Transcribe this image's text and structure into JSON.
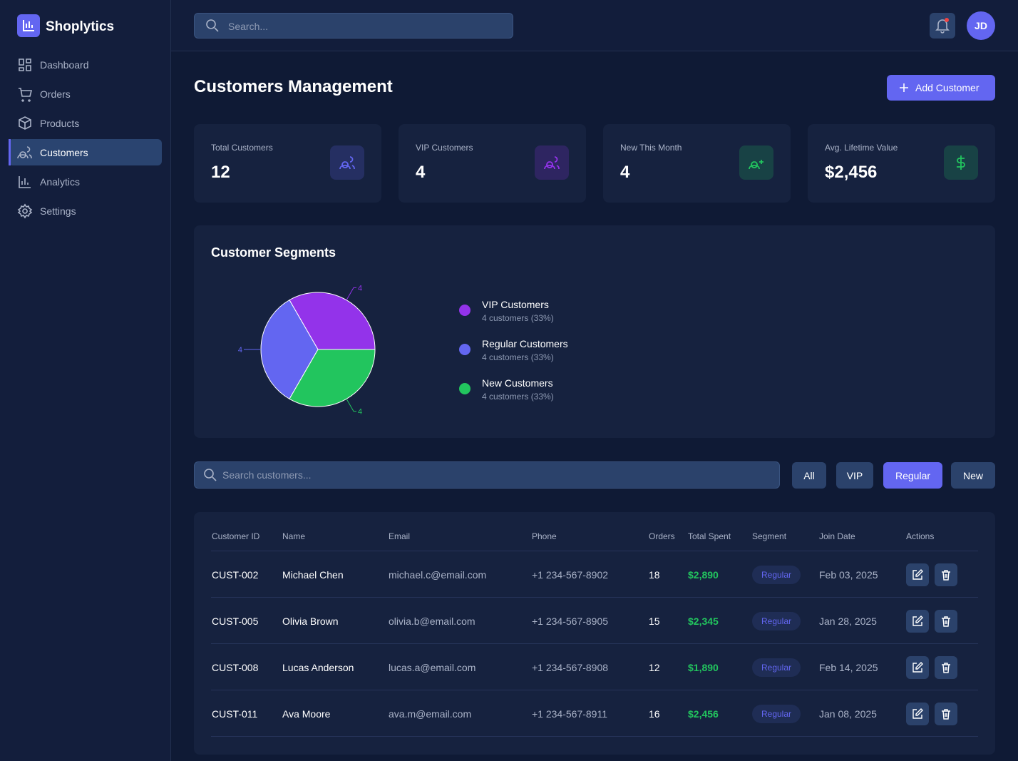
{
  "sidebar": {
    "brand": "Shoplytics",
    "nav": [
      "Dashboard",
      "Orders",
      "Products",
      "Customers",
      "Analytics",
      "Settings"
    ],
    "active": 3
  },
  "topbar": {
    "search_placeholder": "Search...",
    "avatar": "JD"
  },
  "header": {
    "title": "Customers Management",
    "add_button": "Add Customer"
  },
  "stats": [
    {
      "label": "Total Customers",
      "value": 12,
      "color": "#6366f1"
    },
    {
      "label": "VIP Customers",
      "value": 4,
      "color": "#9333ea"
    },
    {
      "label": "New This Month",
      "value": 4,
      "color": "#22c55e"
    },
    {
      "label": "Avg. Lifetime Value",
      "value": "$2,456",
      "color": "#22c55e"
    }
  ],
  "chart_data": {
    "type": "pie",
    "title": "Customer Segments",
    "categories": [
      "VIP Customers",
      "Regular Customers",
      "New Customers"
    ],
    "values": [
      4,
      4,
      4
    ],
    "colors": [
      "#9333ea",
      "#6366f1",
      "#22c55e"
    ],
    "details": [
      "4 customers (33%)",
      "4 customers (33%)",
      "4 customers (33%)"
    ]
  },
  "filters": {
    "search_placeholder": "Search customers...",
    "buttons": [
      "All",
      "VIP",
      "Regular",
      "New"
    ],
    "active": 2
  },
  "table": {
    "columns": [
      "Customer ID",
      "Name",
      "Email",
      "Phone",
      "Orders",
      "Total Spent",
      "Segment",
      "Join Date",
      "Actions"
    ],
    "rows": [
      [
        "CUST-002",
        "Michael Chen",
        "michael.c@email.com",
        "+1 234-567-8902",
        18,
        "$2,890",
        "Regular",
        "Feb 03, 2025"
      ],
      [
        "CUST-005",
        "Olivia Brown",
        "olivia.b@email.com",
        "+1 234-567-8905",
        15,
        "$2,345",
        "Regular",
        "Jan 28, 2025"
      ],
      [
        "CUST-008",
        "Lucas Anderson",
        "lucas.a@email.com",
        "+1 234-567-8908",
        12,
        "$1,890",
        "Regular",
        "Feb 14, 2025"
      ],
      [
        "CUST-011",
        "Ava Moore",
        "ava.m@email.com",
        "+1 234-567-8911",
        16,
        "$2,456",
        "Regular",
        "Jan 08, 2025"
      ]
    ]
  }
}
